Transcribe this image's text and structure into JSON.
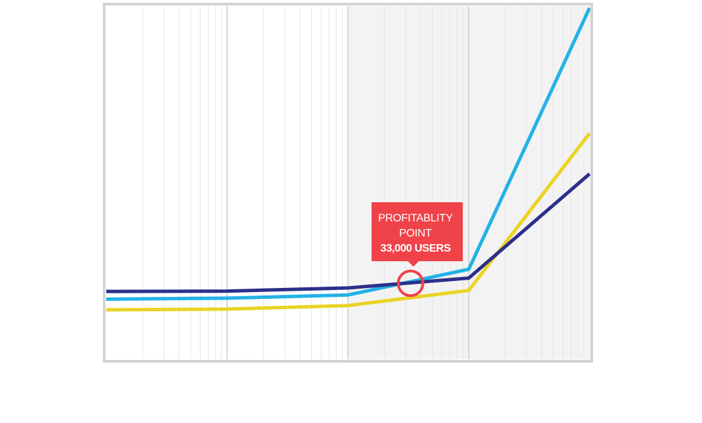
{
  "colors": {
    "frame": "#d4d4d4",
    "grid": "#e6e6e6",
    "grid_major": "#d6d6d6",
    "shade": "#f3f3f3",
    "series_dark": "#2c2f8a",
    "series_light": "#22b2e6",
    "series_yellow": "#ead324",
    "callout": "#ef4249"
  },
  "chart_data": {
    "type": "line",
    "x_scale": "log",
    "xlim": [
      100,
      1000000
    ],
    "ylim": [
      0,
      100
    ],
    "grid": true,
    "shaded_region": {
      "from": 10000,
      "to": 1000000
    },
    "series": [
      {
        "color": "#ead324",
        "x": [
          100,
          1000,
          10000,
          100000,
          1000000
        ],
        "y": [
          14,
          14.2,
          15.2,
          19.5,
          64
        ]
      },
      {
        "color": "#22b2e6",
        "x": [
          100,
          1000,
          10000,
          100000,
          1000000
        ],
        "y": [
          17,
          17.3,
          18.2,
          25.5,
          99.5
        ]
      },
      {
        "color": "#2c2f8a",
        "x": [
          100,
          1000,
          10000,
          100000,
          1000000
        ],
        "y": [
          19.2,
          19.3,
          20.2,
          23,
          52.5
        ]
      }
    ],
    "annotation": {
      "x": 33000,
      "y": 21.5,
      "line1": "PROFITABLITY",
      "line2": "POINT",
      "line3": "33,000 USERS"
    }
  }
}
